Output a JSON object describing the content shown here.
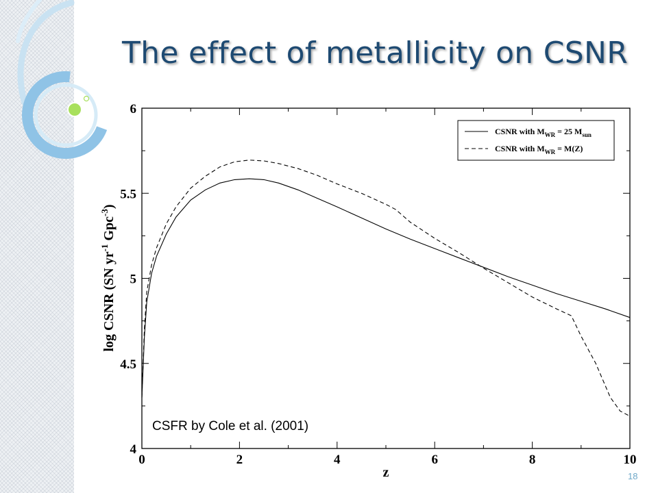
{
  "slide": {
    "title": "The effect of metallicity on CSNR",
    "page_number": "18"
  },
  "colors": {
    "title": "#1e4a72",
    "page_number": "#6fa8c8",
    "accent_green": "#a8e05c",
    "deco_blue": "#8fc3e6"
  },
  "chart_data": {
    "type": "line",
    "xlabel": "z",
    "ylabel_parts": [
      "log CSNR  (SN yr",
      "-1",
      " Gpc",
      "-3",
      ")"
    ],
    "xlim": [
      0,
      10
    ],
    "ylim": [
      4,
      6
    ],
    "xticks": [
      0,
      2,
      4,
      6,
      8,
      10
    ],
    "yticks": [
      4,
      4.5,
      5,
      5.5,
      6
    ],
    "ytick_labels": [
      "4",
      "4.5",
      "5",
      "5.5",
      "6"
    ],
    "grid": false,
    "legend_placement": "top-right",
    "annotation": "CSFR by Cole et al. (2001)",
    "series": [
      {
        "legend_parts": [
          "CSNR with M",
          "WR",
          " = 25 M",
          "sun"
        ],
        "style": "solid",
        "x": [
          0,
          0.05,
          0.1,
          0.2,
          0.3,
          0.5,
          0.7,
          1.0,
          1.3,
          1.6,
          1.9,
          2.2,
          2.5,
          2.8,
          3.2,
          3.6,
          4.0,
          4.5,
          5.0,
          5.5,
          6.0,
          6.5,
          7.0,
          7.5,
          8.0,
          8.5,
          9.0,
          9.5,
          10.0
        ],
        "y": [
          4.3,
          4.65,
          4.86,
          5.03,
          5.13,
          5.26,
          5.36,
          5.46,
          5.52,
          5.56,
          5.58,
          5.585,
          5.58,
          5.56,
          5.52,
          5.47,
          5.42,
          5.355,
          5.29,
          5.23,
          5.175,
          5.12,
          5.065,
          5.01,
          4.96,
          4.91,
          4.865,
          4.82,
          4.77
        ]
      },
      {
        "legend_parts": [
          "CSNR with M",
          "WR",
          " = M(Z)"
        ],
        "style": "dashed",
        "x": [
          0,
          0.05,
          0.1,
          0.2,
          0.3,
          0.5,
          0.7,
          1.0,
          1.3,
          1.6,
          1.9,
          2.2,
          2.5,
          2.8,
          3.2,
          3.6,
          4.0,
          4.5,
          5.0,
          5.2,
          5.5,
          6.0,
          6.5,
          7.0,
          7.5,
          8.0,
          8.5,
          8.8,
          9.0,
          9.3,
          9.6,
          9.8,
          10.0
        ],
        "y": [
          4.3,
          4.7,
          4.92,
          5.08,
          5.18,
          5.32,
          5.42,
          5.53,
          5.6,
          5.655,
          5.685,
          5.695,
          5.69,
          5.675,
          5.645,
          5.605,
          5.555,
          5.5,
          5.435,
          5.405,
          5.33,
          5.235,
          5.15,
          5.06,
          4.975,
          4.89,
          4.82,
          4.78,
          4.66,
          4.5,
          4.3,
          4.22,
          4.19
        ]
      }
    ]
  }
}
